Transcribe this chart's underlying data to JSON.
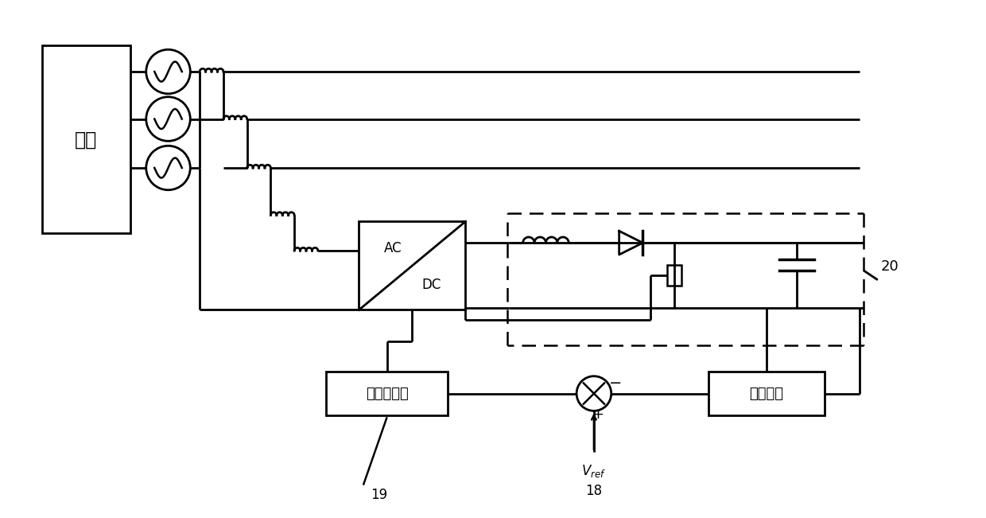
{
  "fig_width": 12.4,
  "fig_height": 6.51,
  "bg_color": "#ffffff",
  "motor_label": "电机",
  "vc_label": "电压控制器",
  "vco_label": "电压采集",
  "label_19": "19",
  "label_18": "18",
  "label_20": "20",
  "label_vref": "V_ref"
}
